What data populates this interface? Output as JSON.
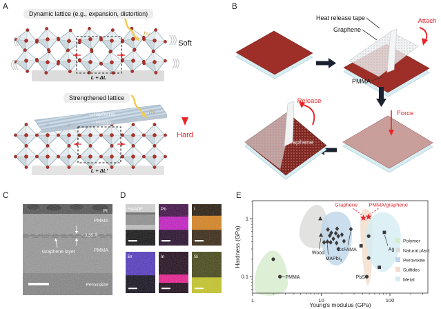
{
  "panels": {
    "a": "A",
    "b": "B",
    "c": "C",
    "d": "D",
    "e": "E"
  },
  "panelA": {
    "title_top": "Dynamic lattice (e.g., expansion, distortion)",
    "title_bottom": "Strengthened lattice",
    "hv": "hν",
    "soft": "Soft",
    "hard": "Hard",
    "sheet": {
      "graphene": "Graphene",
      "pmma": "PMMA"
    },
    "cell_top": "L + ΔL",
    "cell_bottom": "L + ΔL′"
  },
  "panelB": {
    "heat_release_tape": "Heat release tape",
    "graphene_top": "Graphene",
    "attach": "Attach",
    "pmma": "PMMA",
    "force": "Force",
    "release": "Release",
    "graphene_bottom": "Graphene"
  },
  "panelC": {
    "pt": "Pt",
    "pmma_top": "PMMA",
    "spacing": "~ 3.35 Å",
    "graphene_layer": "Graphene layer",
    "pmma_bottom": "PMMA",
    "perovskite": "Perovskite"
  },
  "panelD": {
    "tiles": [
      {
        "label": "HAADF",
        "bands": [
          {
            "c": "#d4d4d4",
            "h": 0.2
          },
          {
            "c": "#646464",
            "h": 0.05
          },
          {
            "c": "#8f8f8f",
            "h": 0.25
          },
          {
            "c": "#bebebe",
            "h": 0.12
          },
          {
            "c": "#0c0c0c",
            "h": 0.38
          }
        ]
      },
      {
        "label": "Pb",
        "bands": [
          {
            "c": "#3c0742",
            "h": 0.3
          },
          {
            "c": "#c516c5",
            "h": 0.32
          },
          {
            "c": "#1e0424",
            "h": 0.38
          }
        ]
      },
      {
        "label": "I",
        "bands": [
          {
            "c": "#211305",
            "h": 0.28
          },
          {
            "c": "#d88018",
            "h": 0.34
          },
          {
            "c": "#31200a",
            "h": 0.38
          }
        ]
      },
      {
        "label": "Br",
        "bands": [
          {
            "c": "#4f33c0",
            "h": 0.57
          },
          {
            "c": "#0b0716",
            "h": 0.43
          }
        ]
      },
      {
        "label": "In",
        "bands": [
          {
            "c": "#1a0314",
            "h": 0.55
          },
          {
            "c": "#ec168e",
            "h": 0.2
          },
          {
            "c": "#140110",
            "h": 0.25
          }
        ]
      },
      {
        "label": "Si",
        "bands": [
          {
            "c": "#414110",
            "h": 0.62
          },
          {
            "c": "#c6c620",
            "h": 0.38
          }
        ]
      }
    ]
  },
  "chart_data": {
    "type": "scatter",
    "xlabel": "Young's modulus (GPa)",
    "ylabel": "Hardness (GPa)",
    "xscale": "log",
    "yscale": "log",
    "xlim": [
      1,
      357
    ],
    "ylim": [
      0.052,
      2.04
    ],
    "x_ticks": [
      1,
      10,
      100
    ],
    "y_ticks": [
      1,
      0.1
    ],
    "legend": [
      {
        "label": "Polymer",
        "color": "#d5ecca"
      },
      {
        "label": "Natural plant",
        "color": "#dbdbd8"
      },
      {
        "label": "Perovskite",
        "color": "#bdd6ea"
      },
      {
        "label": "Sulfides",
        "color": "#f3dccb"
      },
      {
        "label": "Metal",
        "color": "#d3ecf2"
      }
    ],
    "regions": [
      {
        "name": "Polymer",
        "color": "#d5ecca",
        "points": [
          [
            1.05,
            0.052
          ],
          [
            1.08,
            0.12
          ],
          [
            1.4,
            0.22
          ],
          [
            1.8,
            0.29
          ],
          [
            2.4,
            0.27
          ],
          [
            3.0,
            0.17
          ],
          [
            3.3,
            0.095
          ],
          [
            3.2,
            0.058
          ],
          [
            2.2,
            0.047
          ],
          [
            1.4,
            0.047
          ]
        ]
      },
      {
        "name": "Natural plant",
        "color": "#dbdbd8",
        "points": [
          [
            4.6,
            0.5
          ],
          [
            5.2,
            1.0
          ],
          [
            7.2,
            1.7
          ],
          [
            10,
            1.75
          ],
          [
            12,
            1.15
          ],
          [
            13.2,
            0.55
          ],
          [
            11.5,
            0.33
          ],
          [
            8.5,
            0.3
          ],
          [
            5.8,
            0.33
          ]
        ]
      },
      {
        "name": "Perovskite",
        "color": "#bdd6ea",
        "points": [
          [
            9.6,
            0.5
          ],
          [
            10.3,
            0.95
          ],
          [
            13,
            1.3
          ],
          [
            19,
            1.35
          ],
          [
            25.5,
            1.05
          ],
          [
            28.5,
            0.62
          ],
          [
            27,
            0.3
          ],
          [
            21,
            0.165
          ],
          [
            14.5,
            0.15
          ],
          [
            10.8,
            0.24
          ]
        ]
      },
      {
        "name": "Sulfides",
        "color": "#f3dccb",
        "points": [
          [
            38,
            1.45
          ],
          [
            50,
            1.5
          ],
          [
            57,
            0.8
          ],
          [
            56,
            0.3
          ],
          [
            53,
            0.09
          ],
          [
            46,
            0.062
          ],
          [
            40,
            0.18
          ],
          [
            36.5,
            0.65
          ]
        ]
      },
      {
        "name": "Metal",
        "color": "#d3ecf2",
        "points": [
          [
            45,
            0.75
          ],
          [
            58,
            1.2
          ],
          [
            88,
            1.35
          ],
          [
            128,
            0.95
          ],
          [
            150,
            0.5
          ],
          [
            128,
            0.2
          ],
          [
            85,
            0.11
          ],
          [
            57,
            0.14
          ],
          [
            44,
            0.32
          ]
        ]
      }
    ],
    "series": [
      {
        "name": "Polymer",
        "marker": "circle",
        "color": "#3a3a3a",
        "points": [
          [
            2.0,
            0.2
          ],
          [
            2.5,
            0.1
          ]
        ]
      },
      {
        "name": "Natural plant",
        "marker": "triangle",
        "color": "#3a3a3a",
        "points": [
          [
            9.7,
            1.0
          ],
          [
            9.9,
            0.52
          ]
        ]
      },
      {
        "name": "Perovskite",
        "marker": "diamond",
        "color": "#3a3a3a",
        "points": [
          [
            12.5,
            0.65
          ],
          [
            13.3,
            0.51
          ],
          [
            14,
            0.57
          ],
          [
            11,
            0.39
          ],
          [
            12.3,
            0.4
          ],
          [
            13.7,
            0.39
          ],
          [
            15,
            0.45
          ],
          [
            16.3,
            0.56
          ],
          [
            17,
            0.67
          ],
          [
            17.7,
            0.5
          ],
          [
            16.7,
            0.38
          ],
          [
            17.7,
            0.3
          ],
          [
            20,
            0.53
          ],
          [
            21.4,
            0.41
          ],
          [
            27,
            0.66
          ]
        ]
      },
      {
        "name": "Sulfides",
        "marker": "circle",
        "color": "#3a3a3a",
        "points": [
          [
            49,
            0.5
          ],
          [
            49,
            0.21
          ],
          [
            46,
            0.1
          ]
        ]
      },
      {
        "name": "Metal",
        "marker": "square",
        "color": "#3a3a3a",
        "points": [
          [
            83,
            0.58
          ],
          [
            70,
            0.145
          ],
          [
            38,
            0.34
          ]
        ]
      },
      {
        "name": "Graphene",
        "marker": "star",
        "color": "#e8262a",
        "points": [
          [
            41,
            1.03
          ]
        ]
      },
      {
        "name": "PMMA/graphene",
        "marker": "star",
        "color": "#e8262a",
        "points": [
          [
            49,
            1.08
          ]
        ]
      }
    ],
    "annotations": [
      {
        "text": "PMMA",
        "x": 3.0,
        "y": 0.099,
        "anchor": "start",
        "color": "#222",
        "leader": [
          [
            2.62,
            0.1
          ],
          [
            2.95,
            0.1
          ]
        ]
      },
      {
        "text": "Wood",
        "x": 9.0,
        "y": 0.26,
        "anchor": "middle",
        "color": "#222",
        "leader": [
          [
            9.85,
            0.46
          ],
          [
            9.3,
            0.3
          ]
        ]
      },
      {
        "text": "MAPbI",
        "sub": "3",
        "x": 11.5,
        "y": 0.205,
        "anchor": "start",
        "color": "#222",
        "leader": [
          [
            12.3,
            0.36
          ],
          [
            12.6,
            0.24
          ]
        ]
      },
      {
        "text": "CsFAMA",
        "x": 17.3,
        "y": 0.295,
        "anchor": "start",
        "color": "#222",
        "leader": [
          [
            26.8,
            0.6
          ],
          [
            24.5,
            0.35
          ]
        ]
      },
      {
        "text": "PbS",
        "x": 43.5,
        "y": 0.098,
        "anchor": "end",
        "color": "#222",
        "leader": [
          [
            44.2,
            0.1
          ],
          [
            45.6,
            0.1
          ]
        ]
      },
      {
        "text": "Ag",
        "x": 95,
        "y": 0.3,
        "anchor": "start",
        "color": "#222",
        "leader": [
          [
            84,
            0.52
          ],
          [
            93,
            0.34
          ]
        ]
      },
      {
        "text": "Graphene",
        "x": 23,
        "y": 1.72,
        "anchor": "middle",
        "color": "#e8262a",
        "dashed_leader": [
          [
            29,
            1.5
          ],
          [
            39,
            1.16
          ]
        ]
      },
      {
        "text": "PMMA/graphene",
        "x": 95,
        "y": 1.72,
        "anchor": "middle",
        "color": "#e8262a",
        "dashed_leader": [
          [
            68,
            1.5
          ],
          [
            51,
            1.2
          ]
        ]
      }
    ]
  }
}
